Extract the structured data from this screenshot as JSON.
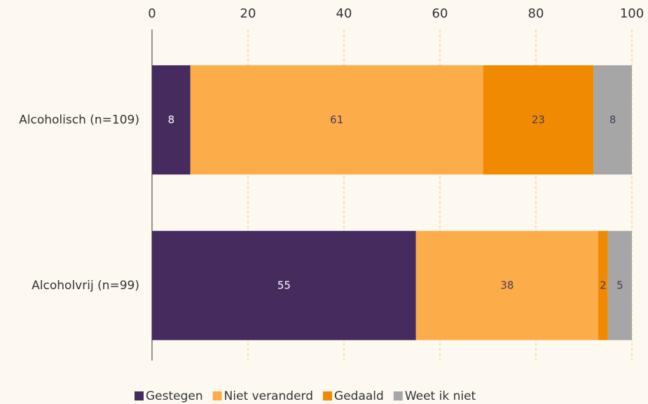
{
  "chart_data": {
    "type": "bar",
    "orientation": "horizontal",
    "stacked": true,
    "categories": [
      "Alcoholisch (n=109)",
      "Alcoholvrij (n=99)"
    ],
    "series": [
      {
        "name": "Gestegen",
        "color": "#452b5e",
        "values": [
          8,
          55
        ]
      },
      {
        "name": "Niet veranderd",
        "color": "#fdac4a",
        "values": [
          61,
          38
        ]
      },
      {
        "name": "Gedaald",
        "color": "#f08a00",
        "values": [
          23,
          2
        ]
      },
      {
        "name": "Weet ik niet",
        "color": "#a6a6a6",
        "values": [
          8,
          5
        ]
      }
    ],
    "xlim": [
      0,
      100
    ],
    "xticks": [
      0,
      20,
      40,
      60,
      80,
      100
    ],
    "grid": true,
    "legend": "bottom"
  }
}
